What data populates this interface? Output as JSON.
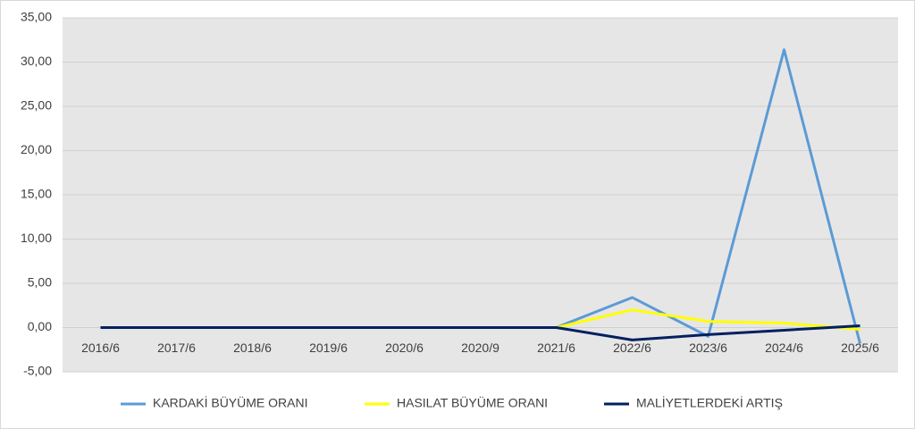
{
  "chart_data": {
    "type": "line",
    "categories": [
      "2016/6",
      "2017/6",
      "2018/6",
      "2019/6",
      "2020/6",
      "2020/9",
      "2021/6",
      "2022/6",
      "2023/6",
      "2024/6",
      "2025/6"
    ],
    "series": [
      {
        "name": "KARDAKİ BÜYÜME ORANI",
        "color": "#5b9bd5",
        "values": [
          0,
          0,
          0,
          0,
          0,
          0,
          0,
          3.4,
          -1.0,
          31.4,
          -1.8
        ]
      },
      {
        "name": "HASILAT BÜYÜME ORANI",
        "color": "#ffff00",
        "values": [
          0,
          0,
          0,
          0,
          0,
          0,
          0,
          2.0,
          0.7,
          0.5,
          -0.2
        ]
      },
      {
        "name": "MALİYETLERDEKİ ARTIŞ",
        "color": "#002060",
        "values": [
          0,
          0,
          0,
          0,
          0,
          0,
          0,
          -1.4,
          -0.8,
          -0.3,
          0.2
        ]
      }
    ],
    "ylim": [
      -5,
      35
    ],
    "yticks": [
      {
        "value": -5,
        "label": "-5,00"
      },
      {
        "value": 0,
        "label": "0,00"
      },
      {
        "value": 5,
        "label": "5,00"
      },
      {
        "value": 10,
        "label": "10,00"
      },
      {
        "value": 15,
        "label": "15,00"
      },
      {
        "value": 20,
        "label": "20,00"
      },
      {
        "value": 25,
        "label": "25,00"
      },
      {
        "value": 30,
        "label": "30,00"
      },
      {
        "value": 35,
        "label": "35,00"
      }
    ],
    "grid": true
  }
}
